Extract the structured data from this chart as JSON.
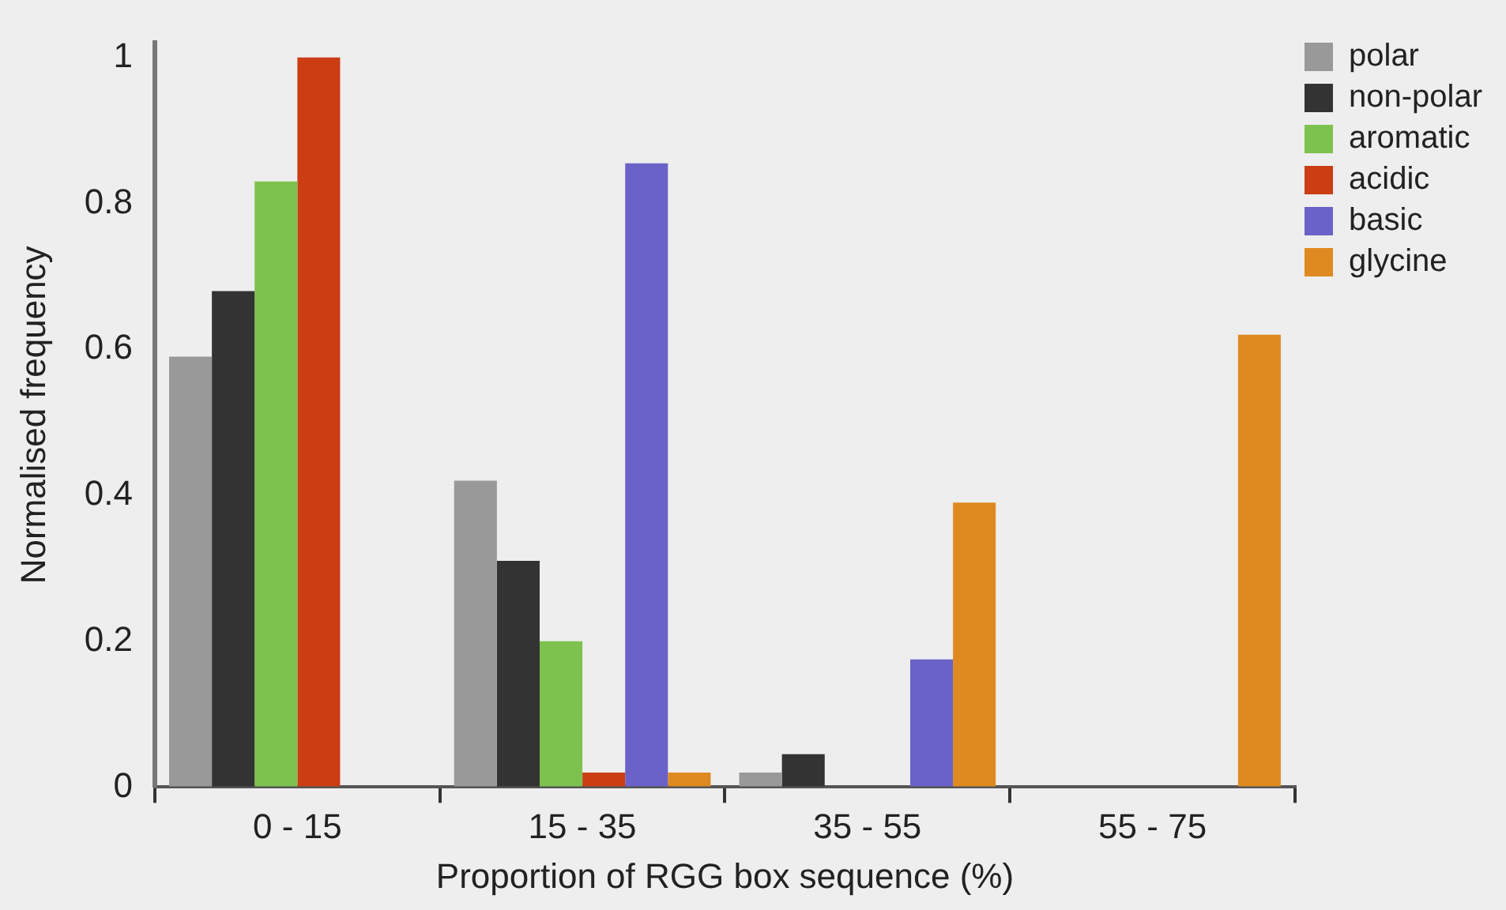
{
  "chart_data": {
    "type": "bar",
    "xlabel": "Proportion of RGG box sequence (%)",
    "ylabel": "Normalised frequency",
    "categories": [
      "0 - 15",
      "15 - 35",
      "35 - 55",
      "55 - 75"
    ],
    "series": [
      {
        "name": "polar",
        "color": "#999999",
        "values": [
          0.59,
          0.42,
          0.02,
          0
        ]
      },
      {
        "name": "non-polar",
        "color": "#333333",
        "values": [
          0.68,
          0.31,
          0.045,
          0
        ]
      },
      {
        "name": "aromatic",
        "color": "#7dc24f",
        "values": [
          0.83,
          0.2,
          0,
          0
        ]
      },
      {
        "name": "acidic",
        "color": "#cc3d14",
        "values": [
          1.0,
          0.02,
          0,
          0
        ]
      },
      {
        "name": "basic",
        "color": "#6a62c8",
        "values": [
          0,
          0.855,
          0.175,
          0
        ]
      },
      {
        "name": "glycine",
        "color": "#df8a20",
        "values": [
          0,
          0.02,
          0.39,
          0.62
        ]
      }
    ],
    "ylim": [
      0,
      1.02
    ],
    "yticks": [
      0,
      0.2,
      0.4,
      0.6,
      0.8,
      1
    ],
    "grid": false,
    "legend": "top right"
  }
}
